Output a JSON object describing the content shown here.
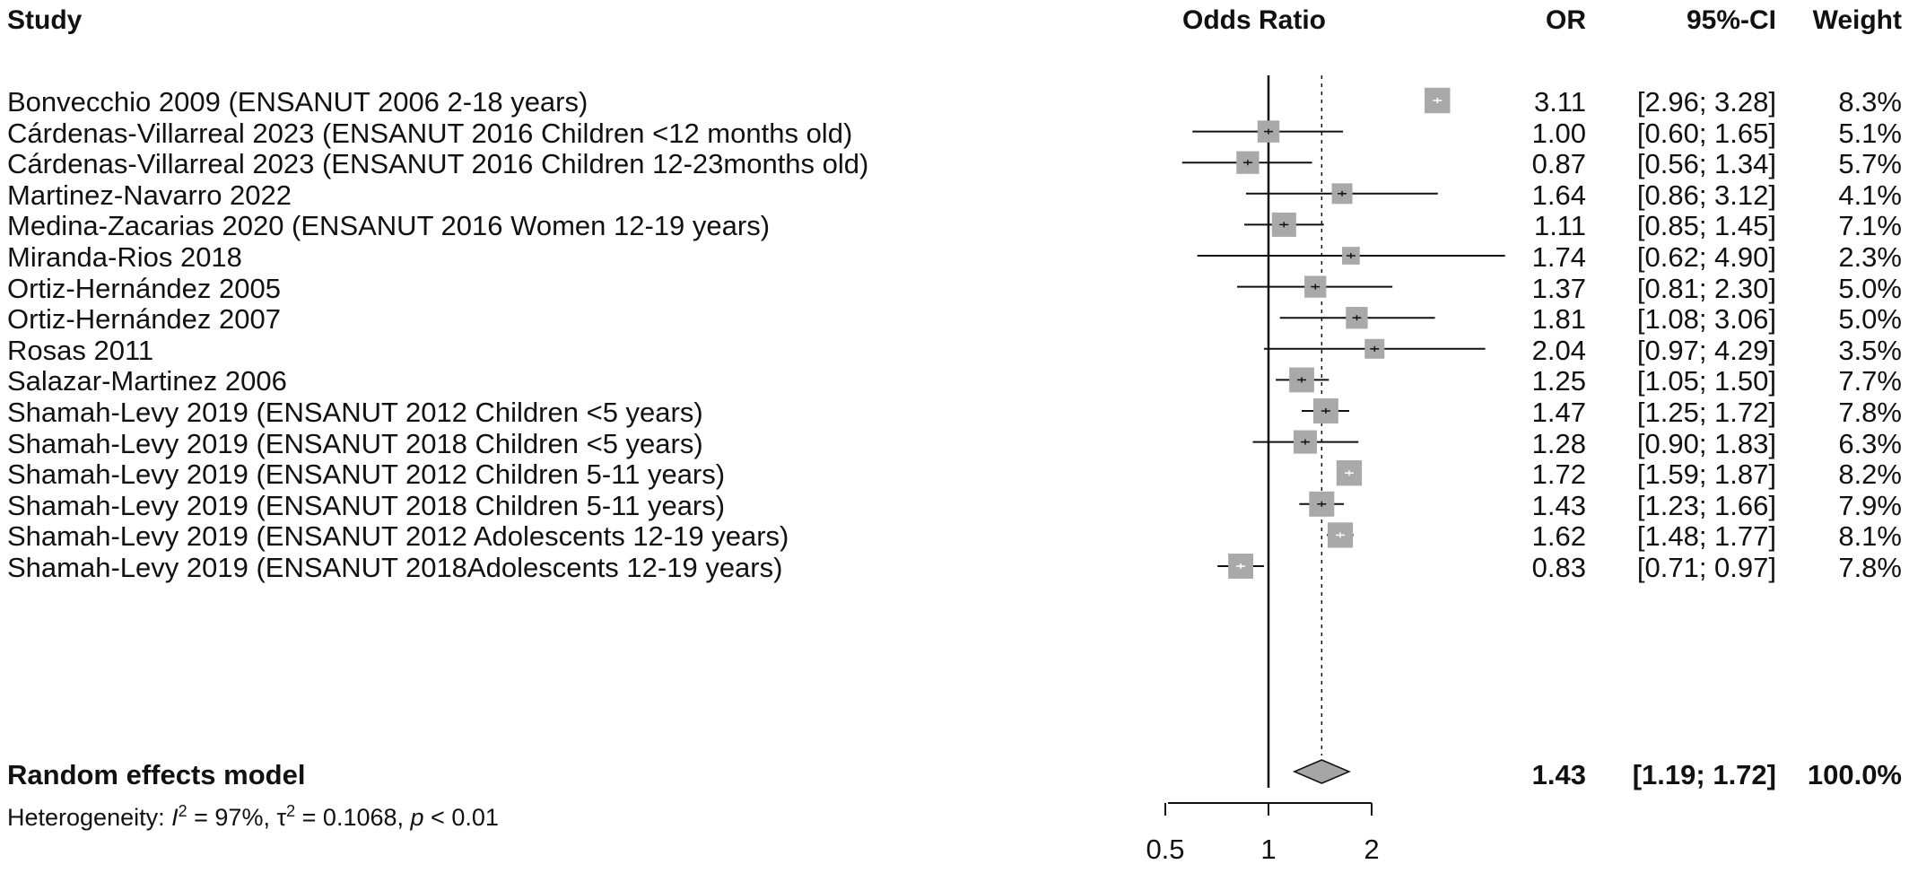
{
  "headers": {
    "study": "Study",
    "effect": "Odds Ratio",
    "or": "OR",
    "ci": "95%-CI",
    "weight": "Weight"
  },
  "studies": [
    {
      "label": "Bonvecchio 2009 (ENSANUT 2006 2-18 years)",
      "or": "3.11",
      "ci": "[2.96; 3.28]",
      "weight": "8.3%"
    },
    {
      "label": "Cárdenas-Villarreal 2023  (ENSANUT 2016 Children <12 months old)",
      "or": "1.00",
      "ci": "[0.60; 1.65]",
      "weight": "5.1%"
    },
    {
      "label": "Cárdenas-Villarreal 2023  (ENSANUT 2016 Children 12-23months old)",
      "or": "0.87",
      "ci": "[0.56; 1.34]",
      "weight": "5.7%"
    },
    {
      "label": "Martinez-Navarro 2022",
      "or": "1.64",
      "ci": "[0.86; 3.12]",
      "weight": "4.1%"
    },
    {
      "label": "Medina-Zacarias 2020 (ENSANUT 2016 Women 12-19 years)",
      "or": "1.11",
      "ci": "[0.85; 1.45]",
      "weight": "7.1%"
    },
    {
      "label": "Miranda-Rios 2018",
      "or": "1.74",
      "ci": "[0.62; 4.90]",
      "weight": "2.3%"
    },
    {
      "label": "Ortiz-Hernández 2005",
      "or": "1.37",
      "ci": "[0.81; 2.30]",
      "weight": "5.0%"
    },
    {
      "label": "Ortiz-Hernández 2007",
      "or": "1.81",
      "ci": "[1.08; 3.06]",
      "weight": "5.0%"
    },
    {
      "label": "Rosas 2011",
      "or": "2.04",
      "ci": "[0.97; 4.29]",
      "weight": "3.5%"
    },
    {
      "label": "Salazar-Martinez 2006",
      "or": "1.25",
      "ci": "[1.05; 1.50]",
      "weight": "7.7%"
    },
    {
      "label": "Shamah-Levy 2019 (ENSANUT 2012 Children <5 years)",
      "or": "1.47",
      "ci": "[1.25; 1.72]",
      "weight": "7.8%"
    },
    {
      "label": "Shamah-Levy 2019 (ENSANUT 2018 Children <5 years)",
      "or": "1.28",
      "ci": "[0.90; 1.83]",
      "weight": "6.3%"
    },
    {
      "label": "Shamah-Levy 2019 (ENSANUT 2012 Children 5-11 years)",
      "or": "1.72",
      "ci": "[1.59; 1.87]",
      "weight": "8.2%"
    },
    {
      "label": "Shamah-Levy 2019 (ENSANUT 2018 Children 5-11 years)",
      "or": "1.43",
      "ci": "[1.23; 1.66]",
      "weight": "7.9%"
    },
    {
      "label": "Shamah-Levy 2019 (ENSANUT 2012 Adolescents 12-19 years)",
      "or": "1.62",
      "ci": "[1.48; 1.77]",
      "weight": "8.1%"
    },
    {
      "label": "Shamah-Levy 2019 (ENSANUT 2018Adolescents 12-19 years)",
      "or": "0.83",
      "ci": "[0.71; 0.97]",
      "weight": "7.8%"
    }
  ],
  "summary": {
    "label": "Random effects model",
    "or": "1.43",
    "ci": "[1.19; 1.72]",
    "weight": "100.0%"
  },
  "heterogeneity": {
    "prefix": "Heterogeneity: ",
    "i2_symbol": "I",
    "i2_value": " = 97%, ",
    "tau_symbol": "τ",
    "tau_value": " = 0.1068, ",
    "p_symbol": "p",
    "p_value": " < 0.01"
  },
  "colors": {
    "box": "#a9a9a9",
    "diamond": "#a6a6a6",
    "line": "#111111"
  },
  "chart_data": {
    "type": "forest",
    "scale": "log",
    "xlim": [
      0.5,
      2.1
    ],
    "ticks": [
      {
        "value": 0.5,
        "label": "0.5"
      },
      {
        "value": 1,
        "label": "1"
      },
      {
        "value": 2,
        "label": "2"
      }
    ],
    "null_value": 1,
    "pooled_estimate": 1.43,
    "pooled_ci": [
      1.19,
      1.72
    ],
    "estimates": [
      3.11,
      1.0,
      0.87,
      1.64,
      1.11,
      1.74,
      1.37,
      1.81,
      2.04,
      1.25,
      1.47,
      1.28,
      1.72,
      1.43,
      1.62,
      0.83
    ],
    "ci_low": [
      2.96,
      0.6,
      0.56,
      0.86,
      0.85,
      0.62,
      0.81,
      1.08,
      0.97,
      1.05,
      1.25,
      0.9,
      1.59,
      1.23,
      1.48,
      0.71
    ],
    "ci_high": [
      3.28,
      1.65,
      1.34,
      3.12,
      1.45,
      4.9,
      2.3,
      3.06,
      4.29,
      1.5,
      1.72,
      1.83,
      1.87,
      1.66,
      1.77,
      0.97
    ],
    "weights": [
      8.3,
      5.1,
      5.7,
      4.1,
      7.1,
      2.3,
      5.0,
      5.0,
      3.5,
      7.7,
      7.8,
      6.3,
      8.2,
      7.9,
      8.1,
      7.8
    ]
  }
}
